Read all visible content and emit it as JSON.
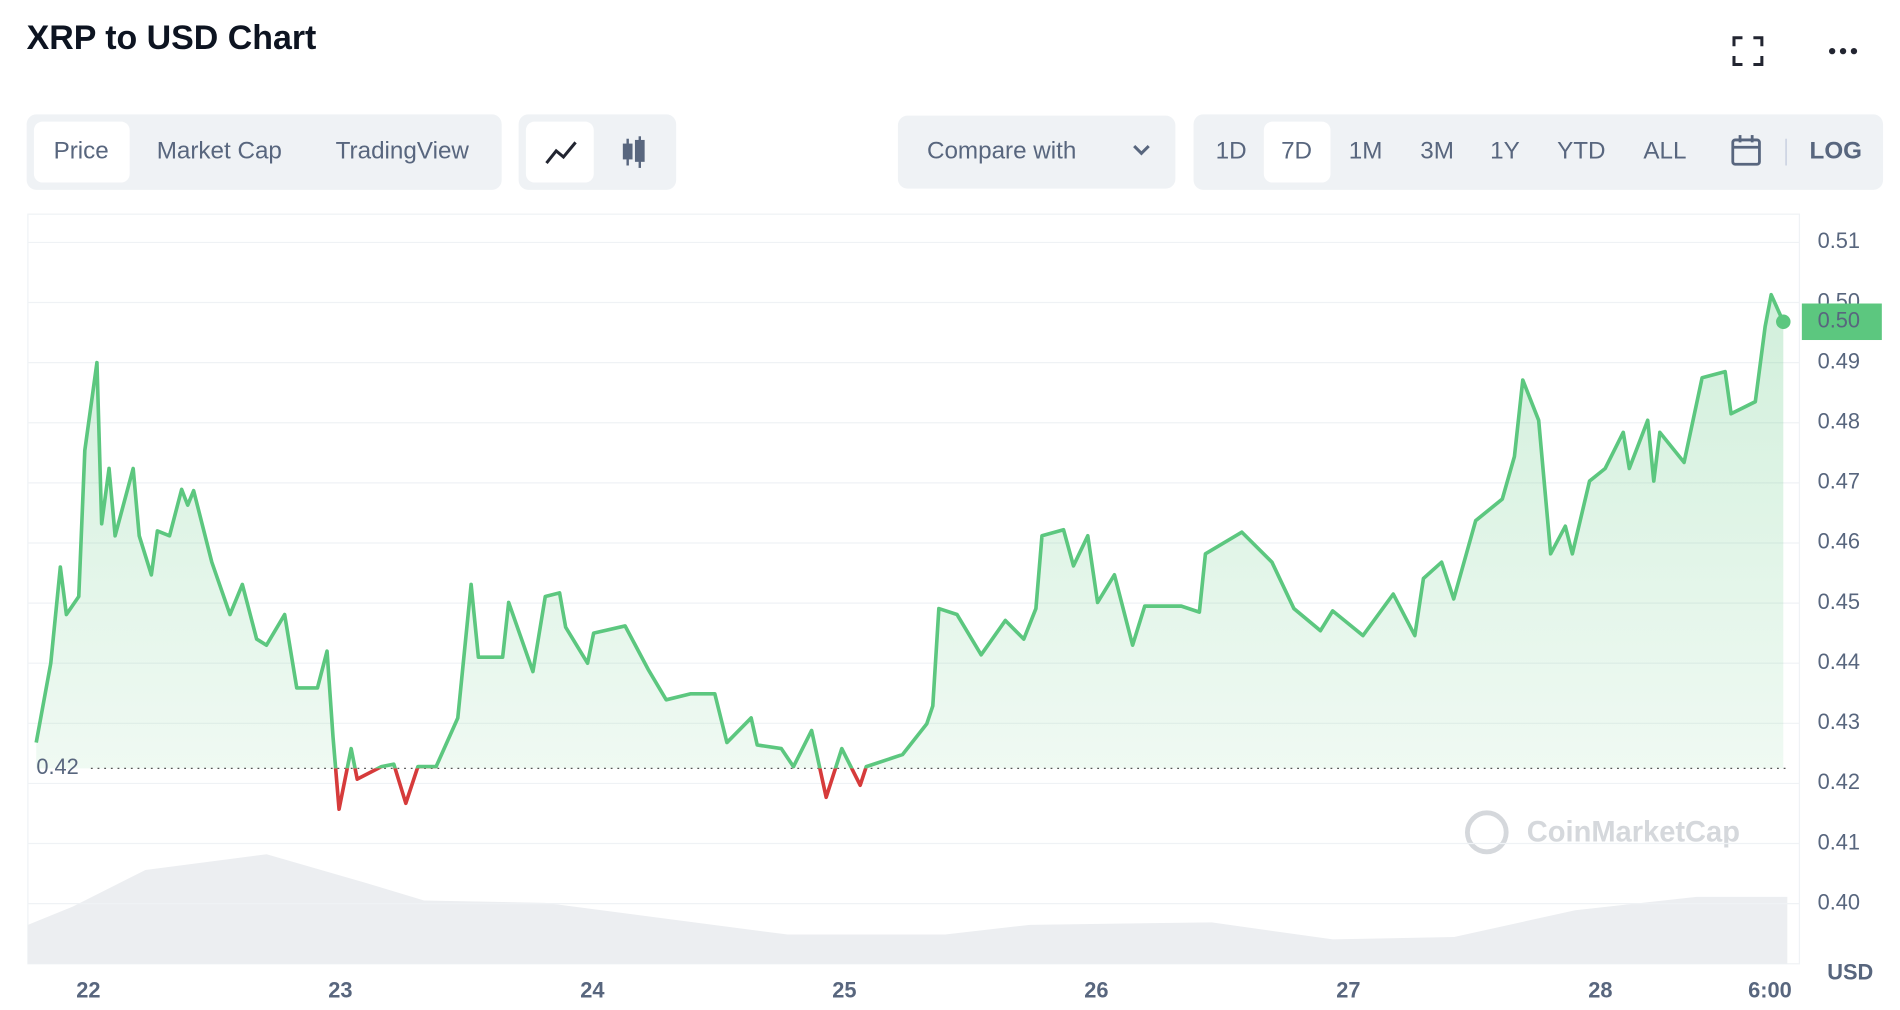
{
  "header": {
    "title": "XRP to USD Chart"
  },
  "tabs": [
    "Price",
    "Market Cap",
    "TradingView"
  ],
  "compare": "Compare with",
  "ranges": [
    "1D",
    "7D",
    "1M",
    "3M",
    "1Y",
    "YTD",
    "ALL"
  ],
  "log": "LOG",
  "watermark": "CoinMarketCap",
  "chart_data": {
    "type": "line",
    "x": [
      21.793,
      21.851,
      21.889,
      21.913,
      21.962,
      21.986,
      22.034,
      22.053,
      22.082,
      22.106,
      22.178,
      22.202,
      22.25,
      22.274,
      22.322,
      22.37,
      22.394,
      22.418,
      22.49,
      22.562,
      22.611,
      22.668,
      22.707,
      22.779,
      22.827,
      22.909,
      22.947,
      22.971,
      22.995,
      23.043,
      23.067,
      23.163,
      23.212,
      23.26,
      23.308,
      23.38,
      23.466,
      23.519,
      23.548,
      23.644,
      23.668,
      23.764,
      23.813,
      23.87,
      23.894,
      23.981,
      24.005,
      24.13,
      24.221,
      24.293,
      24.389,
      24.486,
      24.534,
      24.63,
      24.654,
      24.75,
      24.798,
      24.87,
      24.928,
      24.99,
      25.063,
      25.087,
      25.231,
      25.327,
      25.351,
      25.375,
      25.447,
      25.543,
      25.639,
      25.712,
      25.76,
      25.784,
      25.87,
      25.909,
      25.966,
      26.005,
      26.072,
      26.144,
      26.192,
      26.337,
      26.409,
      26.433,
      26.577,
      26.697,
      26.784,
      26.889,
      26.938,
      27.058,
      27.178,
      27.264,
      27.298,
      27.37,
      27.418,
      27.505,
      27.611,
      27.659,
      27.692,
      27.755,
      27.803,
      27.861,
      27.889,
      27.957,
      28.019,
      28.091,
      28.115,
      28.188,
      28.212,
      28.236,
      28.332,
      28.404,
      28.495,
      28.519,
      28.615,
      28.654,
      28.678,
      28.726
    ],
    "series": [
      {
        "color": "#5cc77f",
        "below_color": "#d63b3b",
        "values": [
          0.4268,
          0.44,
          0.456,
          0.4481,
          0.4511,
          0.4754,
          0.49,
          0.4632,
          0.4724,
          0.4612,
          0.4724,
          0.4612,
          0.4547,
          0.462,
          0.4612,
          0.4689,
          0.4663,
          0.4687,
          0.4568,
          0.4481,
          0.4531,
          0.444,
          0.443,
          0.4481,
          0.4359,
          0.4359,
          0.442,
          0.4278,
          0.4157,
          0.4258,
          0.4207,
          0.4228,
          0.4232,
          0.4167,
          0.4228,
          0.4228,
          0.4309,
          0.4531,
          0.441,
          0.441,
          0.4501,
          0.4386,
          0.4511,
          0.4517,
          0.446,
          0.44,
          0.445,
          0.4462,
          0.439,
          0.4339,
          0.4349,
          0.4349,
          0.4268,
          0.4309,
          0.4264,
          0.4258,
          0.4228,
          0.4288,
          0.4177,
          0.4258,
          0.4197,
          0.4228,
          0.4248,
          0.4299,
          0.4329,
          0.4491,
          0.4481,
          0.4414,
          0.4471,
          0.444,
          0.4491,
          0.4612,
          0.4622,
          0.4562,
          0.4612,
          0.4501,
          0.4547,
          0.443,
          0.4495,
          0.4495,
          0.4485,
          0.4582,
          0.4618,
          0.4568,
          0.4491,
          0.4454,
          0.4487,
          0.4446,
          0.4515,
          0.4446,
          0.4541,
          0.4568,
          0.4507,
          0.4637,
          0.4673,
          0.4744,
          0.4871,
          0.4804,
          0.4582,
          0.4628,
          0.4582,
          0.4703,
          0.4724,
          0.4784,
          0.4724,
          0.4804,
          0.4703,
          0.4784,
          0.4734,
          0.4875,
          0.4885,
          0.4815,
          0.4835,
          0.496,
          0.5013,
          0.4968
        ]
      }
    ],
    "last_value_label": "0.50",
    "baseline": {
      "value": 0.4225,
      "label": "0.42"
    },
    "xlim": [
      21.76,
      28.79
    ],
    "xticks": [
      22,
      23,
      24,
      25,
      26,
      27,
      28,
      {
        "value": 28.75,
        "label": "6:00 PM"
      }
    ],
    "ylim": [
      0.39,
      0.5147
    ],
    "yticks": [
      0.51,
      {
        "value": 0.5,
        "label": "0.50"
      },
      0.49,
      0.48,
      0.47,
      0.46,
      0.45,
      0.44,
      0.43,
      0.42,
      0.41,
      {
        "value": 0.4,
        "label": "0.40"
      }
    ],
    "y_unit": "USD",
    "grid": true
  }
}
